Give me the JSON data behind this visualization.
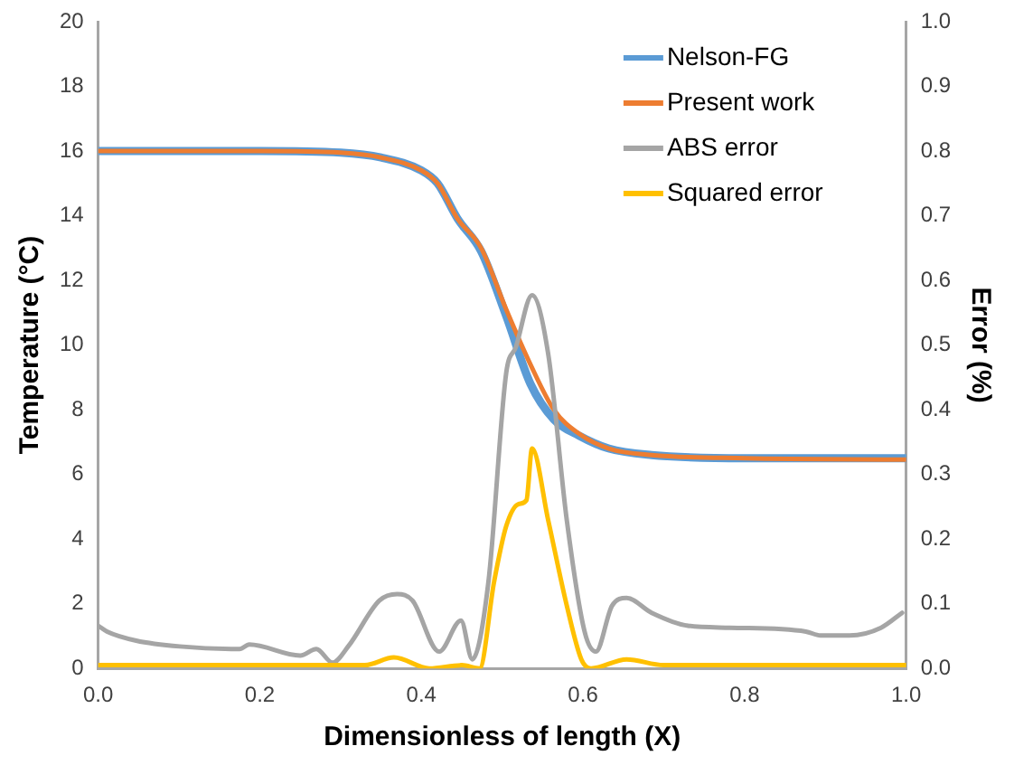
{
  "chart_data": {
    "type": "line",
    "xlabel": "Dimensionless of length (X)",
    "ylabel": "Temperature (°C)",
    "y2label": "Error (%)",
    "xlim": [
      0,
      1
    ],
    "xticks": [
      {
        "value": 0,
        "label": "0.0"
      },
      {
        "value": 0.2,
        "label": "0.2"
      },
      {
        "value": 0.4,
        "label": "0.4"
      },
      {
        "value": 0.6,
        "label": "0.6"
      },
      {
        "value": 0.8,
        "label": "0.8"
      },
      {
        "value": 1,
        "label": "1.0"
      }
    ],
    "ylim": [
      0,
      20
    ],
    "yticks": [
      0,
      2,
      4,
      6,
      8,
      10,
      12,
      14,
      16,
      18,
      20
    ],
    "y2lim": [
      0,
      1
    ],
    "y2ticks": [
      {
        "value": 0,
        "label": "0.0"
      },
      {
        "value": 0.1,
        "label": "0.1"
      },
      {
        "value": 0.2,
        "label": "0.2"
      },
      {
        "value": 0.3,
        "label": "0.3"
      },
      {
        "value": 0.4,
        "label": "0.4"
      },
      {
        "value": 0.5,
        "label": "0.5"
      },
      {
        "value": 0.6,
        "label": "0.6"
      },
      {
        "value": 0.7,
        "label": "0.7"
      },
      {
        "value": 0.8,
        "label": "0.8"
      },
      {
        "value": 0.9,
        "label": "0.9"
      },
      {
        "value": 1,
        "label": "1.0"
      }
    ],
    "grid": false,
    "legend": "top right",
    "marker": "none",
    "line_style": "solid",
    "series": [
      {
        "name": "Nelson-FG",
        "color": "#5b9bd5",
        "x": [
          0,
          0.1,
          0.2,
          0.3,
          0.35,
          0.4,
          0.42,
          0.445,
          0.474,
          0.505,
          0.535,
          0.564,
          0.595,
          0.632,
          0.685,
          0.8,
          1
        ],
        "values": [
          16,
          16,
          16,
          15.95,
          15.8,
          15.4,
          15,
          13.9,
          12.9,
          10.9,
          8.8,
          7.7,
          7.2,
          6.8,
          6.6,
          6.5,
          6.5
        ]
      },
      {
        "name": "Present work",
        "color": "#ed7d31",
        "x": [
          0,
          0.1,
          0.2,
          0.3,
          0.35,
          0.4,
          0.42,
          0.445,
          0.474,
          0.505,
          0.535,
          0.564,
          0.595,
          0.632,
          0.685,
          0.8,
          1
        ],
        "values": [
          16,
          16,
          16,
          15.95,
          15.8,
          15.4,
          15,
          13.9,
          13,
          11.1,
          9.4,
          8,
          7.26,
          6.8,
          6.6,
          6.5,
          6.46
        ]
      },
      {
        "name": "ABS error",
        "color": "#a5a5a5",
        "axis": "y2",
        "x": [
          0,
          0.011,
          0.047,
          0.101,
          0.175,
          0.187,
          0.25,
          0.27,
          0.29,
          0.31,
          0.348,
          0.37,
          0.389,
          0.422,
          0.449,
          0.463,
          0.483,
          0.505,
          0.517,
          0.537,
          0.557,
          0.58,
          0.602,
          0.616,
          0.636,
          0.654,
          0.685,
          0.73,
          0.782,
          0.876,
          0.894,
          0.93,
          0.969,
          0.995
        ],
        "values": [
          0.066,
          0.057,
          0.043,
          0.034,
          0.03,
          0.037,
          0.02,
          0.03,
          0.009,
          0.035,
          0.105,
          0.115,
          0.105,
          0.026,
          0.074,
          0.014,
          0.134,
          0.457,
          0.497,
          0.577,
          0.486,
          0.229,
          0.057,
          0.026,
          0.097,
          0.109,
          0.086,
          0.066,
          0.063,
          0.057,
          0.051,
          0.051,
          0.063,
          0.086
        ]
      },
      {
        "name": "Squared error",
        "color": "#ffc000",
        "axis": "y2",
        "x": [
          0,
          0.2,
          0.33,
          0.366,
          0.41,
          0.45,
          0.472,
          0.49,
          0.505,
          0.52,
          0.53,
          0.537,
          0.557,
          0.58,
          0.598,
          0.61,
          0.654,
          0.7,
          1
        ],
        "values": [
          0.005,
          0.005,
          0.005,
          0.017,
          0,
          0.005,
          0,
          0.134,
          0.22,
          0.254,
          0.26,
          0.34,
          0.229,
          0.097,
          0.014,
          0,
          0.014,
          0.005,
          0.005
        ]
      }
    ]
  }
}
